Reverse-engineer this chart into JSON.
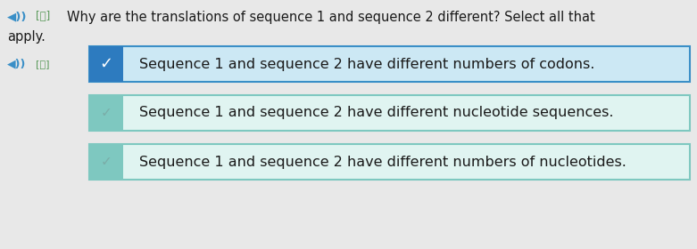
{
  "question_line1": "◄)) 翻 Why are the translations of sequence 1 and sequence 2 different? Select all that",
  "question_line2": "apply.",
  "answers": [
    "Sequence 1 and sequence 2 have different numbers of codons.",
    "Sequence 1 and sequence 2 have different nucleotide sequences.",
    "Sequence 1 and sequence 2 have different numbers of nucleotides."
  ],
  "answer_bold": [
    false,
    false,
    false
  ],
  "box_bg_colors": [
    "#cce8f4",
    "#e0f4f1",
    "#e0f4f1"
  ],
  "box_border_colors": [
    "#3a8fc7",
    "#7ec8c0",
    "#7ec8c0"
  ],
  "box_left_bar_color": "#2d7bbf",
  "check_color_1": "#ffffff",
  "check_color_23": "#7aada8",
  "bg_color": "#e8e8e8",
  "question_fontsize": 10.5,
  "answer_fontsize": 11.5,
  "icon_color": "#3a8fc7",
  "icon_color_green": "#5a9a5a"
}
